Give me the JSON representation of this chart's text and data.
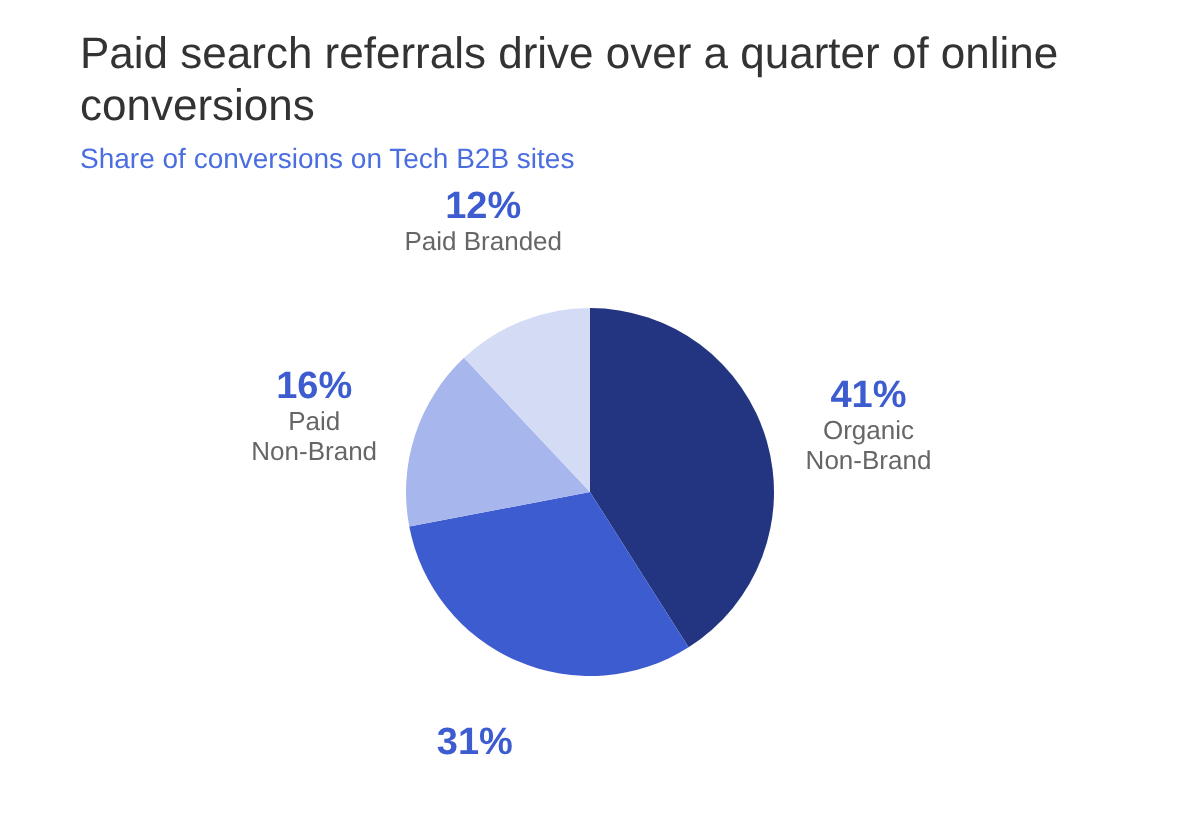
{
  "chart_data": {
    "type": "pie",
    "title": "Paid search referrals drive over a quarter of online conversions",
    "subtitle": "Share of conversions on Tech B2B sites",
    "categories": [
      "Organic Non-Brand",
      null,
      "Paid Non-Brand",
      "Paid Branded"
    ],
    "values": [
      41,
      31,
      16,
      12
    ],
    "value_labels": [
      "41%",
      "31%",
      "16%",
      "12%"
    ],
    "colors": [
      "#233580",
      "#3d5ccf",
      "#a7b6ec",
      "#d4dcf5"
    ]
  }
}
